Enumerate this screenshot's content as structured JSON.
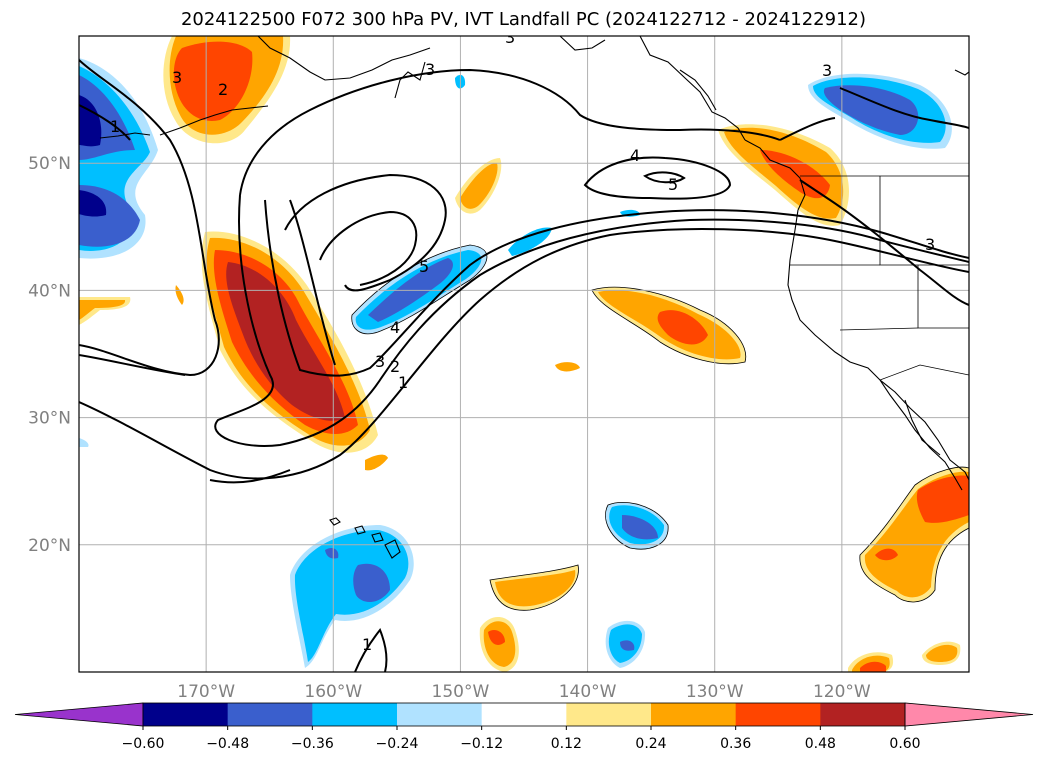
{
  "title": "2024122500 F072 300 hPa PV, IVT Landfall PC (2024122712 - 2024122912)",
  "map": {
    "lon_range": [
      -180,
      -110
    ],
    "lat_range": [
      10,
      60
    ],
    "lat_ticks": [
      {
        "value": 20,
        "label": "20°N"
      },
      {
        "value": 30,
        "label": "30°N"
      },
      {
        "value": 40,
        "label": "40°N"
      },
      {
        "value": 50,
        "label": "50°N"
      }
    ],
    "lon_ticks": [
      {
        "value": -170,
        "label": "170°W"
      },
      {
        "value": -160,
        "label": "160°W"
      },
      {
        "value": -150,
        "label": "150°W"
      },
      {
        "value": -140,
        "label": "140°W"
      },
      {
        "value": -130,
        "label": "130°W"
      },
      {
        "value": -120,
        "label": "120°W"
      }
    ],
    "contour_labels": [
      "1",
      "2",
      "3",
      "4",
      "5"
    ]
  },
  "colorbar": {
    "ticks": [
      "−0.60",
      "−0.48",
      "−0.36",
      "−0.24",
      "−0.12",
      "0.12",
      "0.24",
      "0.36",
      "0.48",
      "0.60"
    ],
    "colors": [
      "#9933cc",
      "#00008b",
      "#3a5fcd",
      "#00bfff",
      "#b0e2ff",
      "#ffffff",
      "#ffe88a",
      "#ffa500",
      "#ff4500",
      "#b22222",
      "#ff88aa"
    ]
  },
  "fill_colors": {
    "neg_strong": "#00008b",
    "neg_mid": "#3a5fcd",
    "neg_light": "#00bfff",
    "neg_pale": "#b0e2ff",
    "pos_pale": "#ffe88a",
    "pos_light": "#ffa500",
    "pos_mid": "#ff4500",
    "pos_strong": "#b22222"
  }
}
